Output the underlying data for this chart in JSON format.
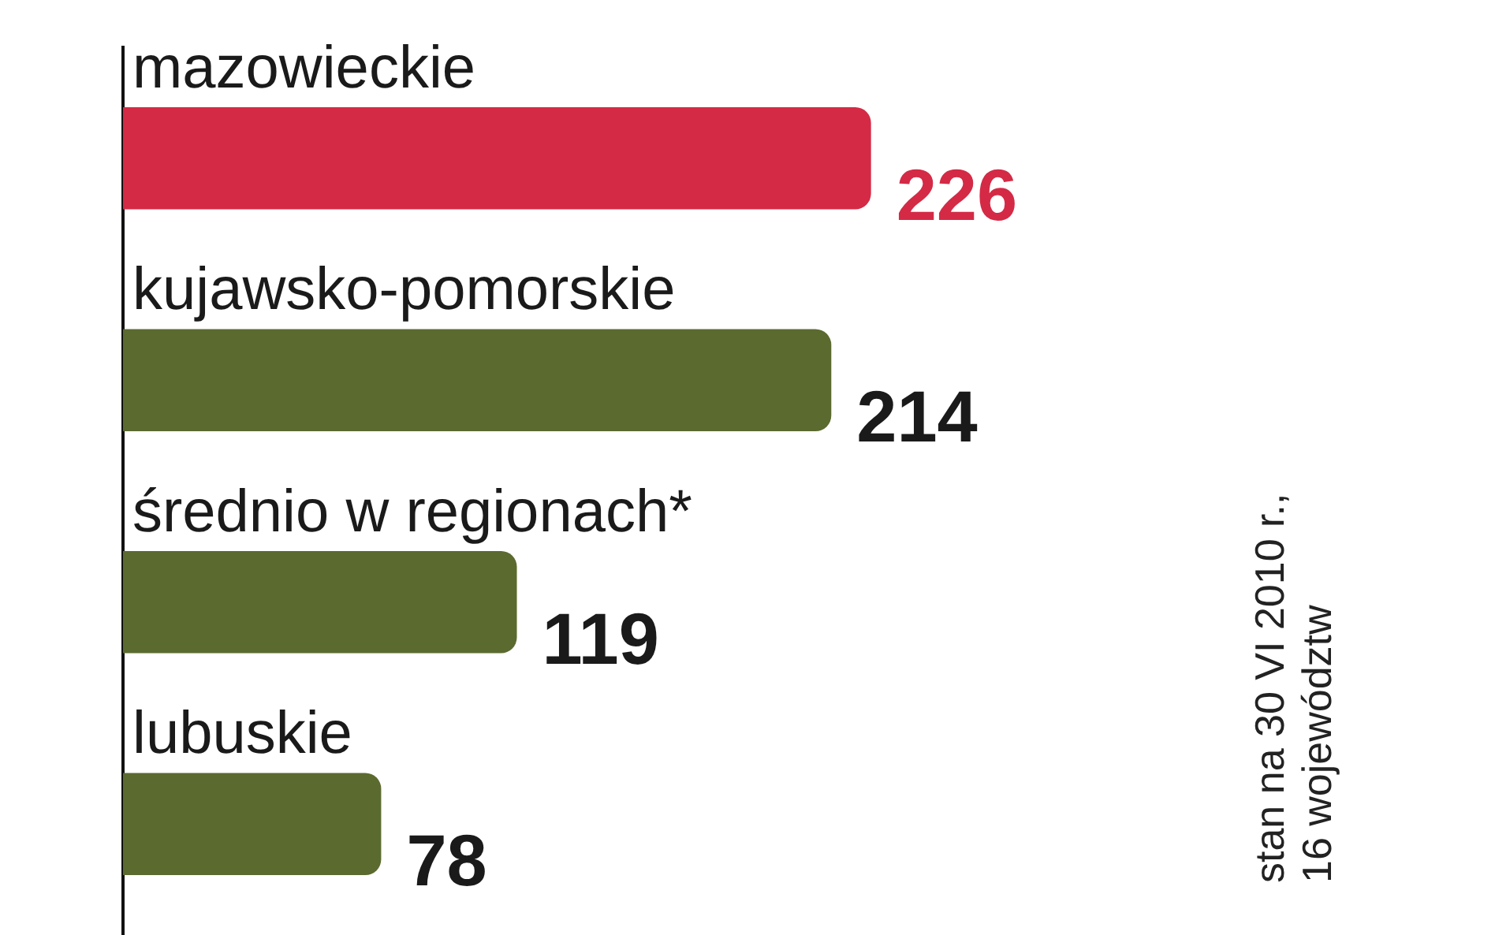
{
  "chart_data": {
    "type": "bar",
    "orientation": "horizontal",
    "categories": [
      "mazowieckie",
      "kujawsko-pomorskie",
      "średnio w regionach*",
      "lubuskie"
    ],
    "values": [
      226,
      214,
      119,
      78
    ],
    "colors": [
      "#d42a45",
      "#5b6a2f",
      "#5b6a2f",
      "#5b6a2f"
    ],
    "data_labels": true,
    "annotations": [
      "stan na 30 VI 2010 r.,",
      "16 województw"
    ]
  }
}
